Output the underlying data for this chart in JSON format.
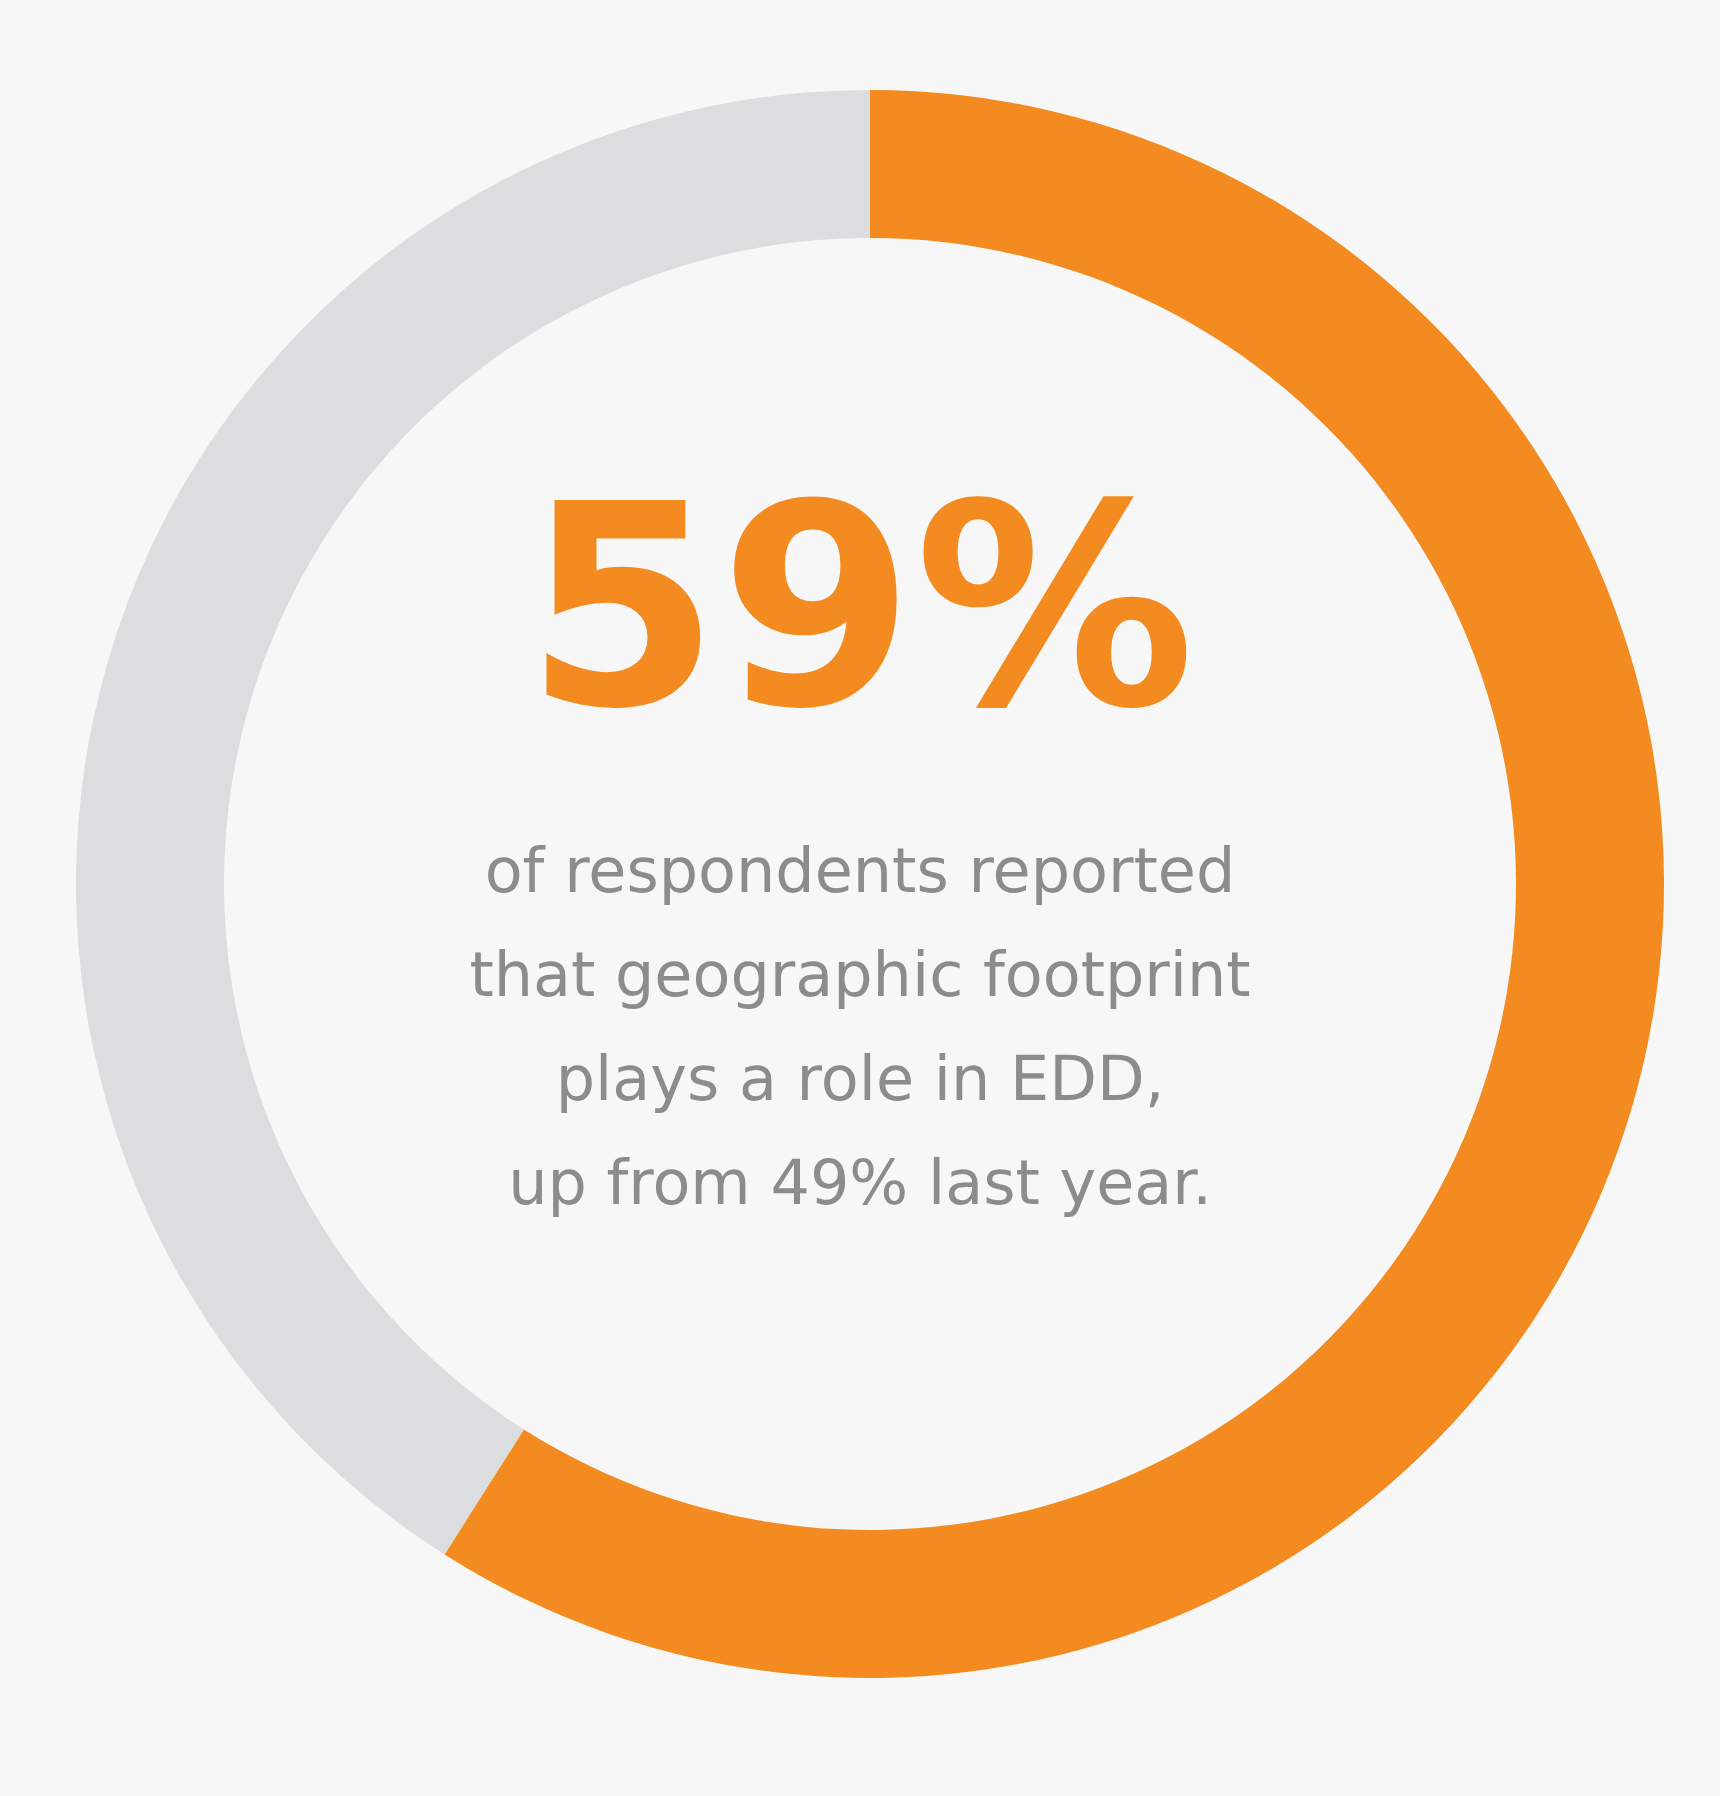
{
  "chart_data": {
    "type": "donut",
    "categories": [
      null,
      null
    ],
    "values": [
      59,
      41
    ],
    "colors": [
      "#f38b20",
      "#dcddde"
    ],
    "value_labels": [
      "59%",
      null
    ],
    "annotations": [
      "of respondents reported",
      "that geographic footprint",
      "plays a role in EDD,",
      "up from 49% last year."
    ]
  }
}
